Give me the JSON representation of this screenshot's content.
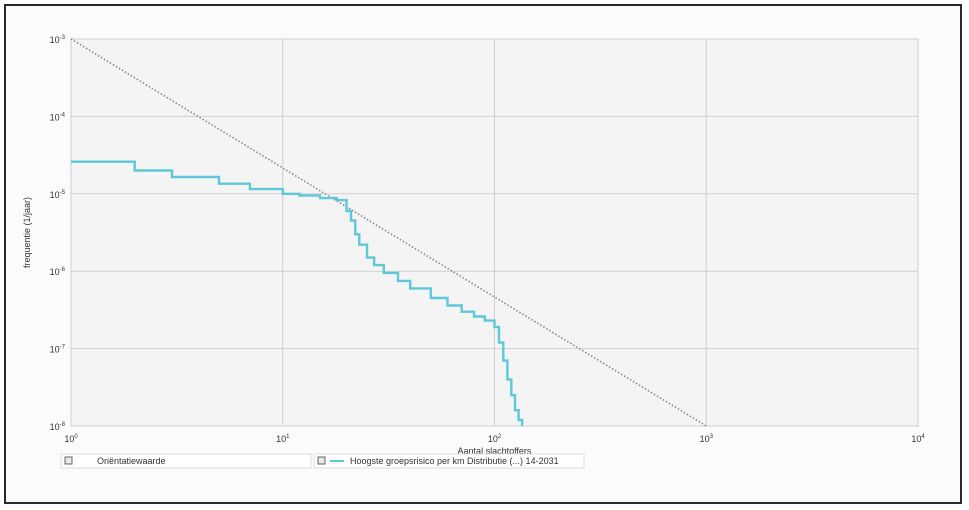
{
  "chart_data": {
    "type": "line",
    "title": "",
    "xlabel": "Aantal slachtoffers",
    "ylabel": "frequentie (1/jaar)",
    "x_scale": "log",
    "y_scale": "log",
    "xlim": [
      1,
      10000
    ],
    "ylim": [
      1e-08,
      0.001
    ],
    "x_ticks": [
      {
        "value": 1,
        "label": "10^0"
      },
      {
        "value": 10,
        "label": "10^1"
      },
      {
        "value": 100,
        "label": "10^2"
      },
      {
        "value": 1000,
        "label": "10^3"
      },
      {
        "value": 10000,
        "label": "10^4"
      }
    ],
    "y_ticks": [
      {
        "value": 0.001,
        "label": "10^-3"
      },
      {
        "value": 0.0001,
        "label": "10^-4"
      },
      {
        "value": 1e-05,
        "label": "10^-5"
      },
      {
        "value": 1e-06,
        "label": "10^-6"
      },
      {
        "value": 1e-07,
        "label": "10^-7"
      },
      {
        "value": 1e-08,
        "label": "10^-8"
      }
    ],
    "grid": true,
    "legend_position": "bottom",
    "series": [
      {
        "name": "Oriëntatiewaarde",
        "style": "dotted",
        "color": "#8a8a8a",
        "x": [
          1,
          1000
        ],
        "y": [
          0.001,
          1e-08
        ]
      },
      {
        "name": "Hoogste groepsrisico per km Distributie (...) 14-2031",
        "style": "step",
        "color": "#5ec8d8",
        "x": [
          1,
          2,
          3,
          5,
          7,
          10,
          12,
          15,
          18,
          20,
          21,
          22,
          23,
          25,
          27,
          30,
          35,
          40,
          50,
          60,
          70,
          80,
          90,
          100,
          105,
          110,
          115,
          120,
          125,
          130,
          135
        ],
        "y": [
          2.6e-05,
          2e-05,
          1.65e-05,
          1.35e-05,
          1.15e-05,
          1e-05,
          9.5e-06,
          8.8e-06,
          8.3e-06,
          6e-06,
          4.5e-06,
          3e-06,
          2.2e-06,
          1.5e-06,
          1.2e-06,
          9.5e-07,
          7.5e-07,
          6e-07,
          4.5e-07,
          3.6e-07,
          3e-07,
          2.6e-07,
          2.3e-07,
          1.9e-07,
          1.2e-07,
          7e-08,
          4e-08,
          2.5e-08,
          1.6e-08,
          1.2e-08,
          1e-08
        ]
      }
    ]
  }
}
